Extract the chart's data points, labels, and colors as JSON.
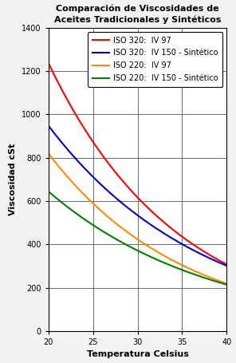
{
  "title": "Comparación de Viscosidades de\nAceites Tradicionales y Sintéticos",
  "xlabel": "Temperatura Celsius",
  "ylabel": "Viscosidad cSt",
  "xlim": [
    20,
    40
  ],
  "ylim": [
    0,
    1400
  ],
  "xticks": [
    20,
    25,
    30,
    35,
    40
  ],
  "yticks": [
    0,
    200,
    400,
    600,
    800,
    1000,
    1200,
    1400
  ],
  "series": [
    {
      "label": "ISO 320:  IV 97",
      "color": "#FF0000",
      "x": [
        20,
        25,
        30,
        35,
        40
      ],
      "y": [
        1260,
        880,
        600,
        420,
        320
      ]
    },
    {
      "label": "ISO 320:  IV 150 - Sintético",
      "color": "#0000CC",
      "x": [
        20,
        25,
        30,
        35,
        40
      ],
      "y": [
        980,
        710,
        510,
        390,
        315
      ]
    },
    {
      "label": "ISO 220:  IV 97",
      "color": "#FF8C00",
      "x": [
        20,
        25,
        30,
        35,
        40
      ],
      "y": [
        850,
        590,
        400,
        295,
        230
      ]
    },
    {
      "label": "ISO 220:  IV 150 - Sintético",
      "color": "#008000",
      "x": [
        20,
        25,
        30,
        35,
        40
      ],
      "y": [
        660,
        490,
        355,
        280,
        220
      ]
    }
  ],
  "legend_fontsize": 7,
  "title_fontsize": 8,
  "axis_label_fontsize": 8,
  "tick_fontsize": 7,
  "figsize": [
    2.96,
    4.55
  ],
  "dpi": 100,
  "bg_color": "#f2f2f2",
  "plot_bg_color": "#ffffff"
}
